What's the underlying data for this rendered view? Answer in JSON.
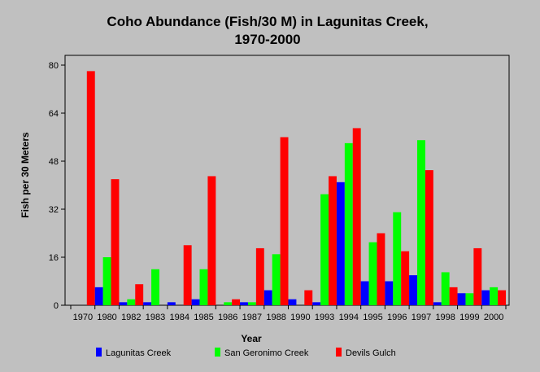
{
  "chart_data": {
    "type": "bar",
    "title_line1": "Coho Abundance (Fish/30 M) in Lagunitas Creek,",
    "title_line2": "1970-2000",
    "xlabel": "Year",
    "ylabel": "Fish per 30 Meters",
    "ylim": [
      0,
      80
    ],
    "yticks": [
      0,
      16,
      32,
      48,
      64,
      80
    ],
    "grid": false,
    "legend_position": "bottom",
    "categories": [
      "1970",
      "1980",
      "1982",
      "1983",
      "1984",
      "1985",
      "1986",
      "1987",
      "1988",
      "1990",
      "1993",
      "1994",
      "1995",
      "1996",
      "1997",
      "1998",
      "1999",
      "2000"
    ],
    "series": [
      {
        "name": "Lagunitas Creek",
        "color": "#0000ff",
        "values": [
          0,
          6,
          1,
          1,
          1,
          2,
          0,
          1,
          5,
          2,
          1,
          41,
          8,
          8,
          10,
          1,
          4,
          5
        ]
      },
      {
        "name": "San Geronimo Creek",
        "color": "#00ff00",
        "values": [
          0,
          16,
          2,
          12,
          0,
          12,
          1,
          1,
          17,
          0,
          37,
          54,
          21,
          31,
          55,
          11,
          4,
          6
        ]
      },
      {
        "name": "Devils Gulch",
        "color": "#ff0000",
        "values": [
          78,
          42,
          7,
          0,
          20,
          43,
          2,
          19,
          56,
          5,
          43,
          59,
          24,
          18,
          45,
          6,
          19,
          5
        ]
      }
    ]
  }
}
